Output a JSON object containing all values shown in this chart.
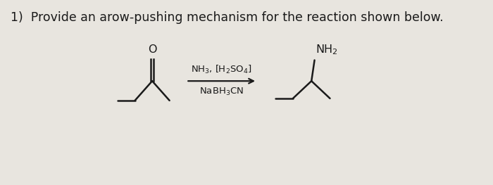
{
  "title": "1)  Provide an arow-pushing mechanism for the reaction shown below.",
  "bg_color": "#e8e5df",
  "text_color": "#1a1a1a",
  "title_fontsize": 12.5,
  "reagents_line1": "NH$_3$, [H$_2$SO$_4$]",
  "reagents_line2": "NaBH$_3$CN",
  "product_label": "NH$_2$",
  "reactant_O_label": "O"
}
